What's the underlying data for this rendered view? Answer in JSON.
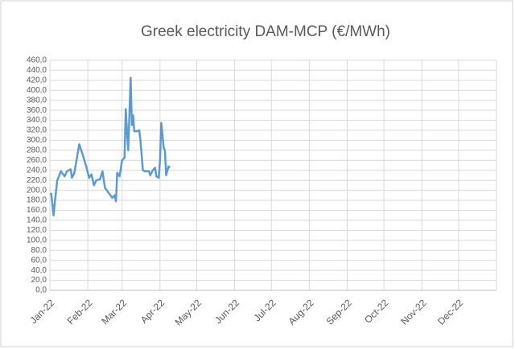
{
  "chart_data": {
    "type": "line",
    "title": "Greek electricity DAM-MCP (€/MWh)",
    "x": [
      1,
      3,
      4,
      6,
      9,
      12,
      14,
      17,
      18,
      20,
      24,
      27,
      30,
      32,
      34,
      36,
      38,
      41,
      43,
      45,
      48,
      51,
      53,
      54,
      55,
      57,
      59,
      61,
      62,
      63,
      64,
      66,
      67,
      68,
      69,
      71,
      73,
      74,
      76,
      78,
      81,
      82,
      84,
      86,
      87,
      89,
      90,
      91,
      93,
      94,
      95,
      97,
      98
    ],
    "series": [
      {
        "name": "DAM-MCP",
        "color": "#5b9bd5",
        "values": [
          195,
          150,
          175,
          220,
          238,
          228,
          238,
          242,
          225,
          235,
          292,
          270,
          245,
          225,
          232,
          210,
          220,
          222,
          238,
          205,
          195,
          185,
          190,
          178,
          235,
          228,
          260,
          265,
          362,
          320,
          280,
          425,
          330,
          350,
          318,
          318,
          320,
          300,
          240,
          238,
          238,
          230,
          240,
          245,
          228,
          225,
          260,
          335,
          285,
          280,
          230,
          248,
          245
        ]
      }
    ],
    "xlim": [
      0,
      365
    ],
    "xticks": [
      {
        "value": 0,
        "label": "Jan-22"
      },
      {
        "value": 31,
        "label": "Feb-22"
      },
      {
        "value": 59,
        "label": "Mar-22"
      },
      {
        "value": 90,
        "label": "Apr-22"
      },
      {
        "value": 120,
        "label": "May-22"
      },
      {
        "value": 151,
        "label": "Jun-22"
      },
      {
        "value": 181,
        "label": "Jul-22"
      },
      {
        "value": 212,
        "label": "Aug-22"
      },
      {
        "value": 243,
        "label": "Sep-22"
      },
      {
        "value": 273,
        "label": "Oct-22"
      },
      {
        "value": 304,
        "label": "Nov-22"
      },
      {
        "value": 334,
        "label": "Dec-22"
      }
    ],
    "ylim": [
      0,
      460
    ],
    "yticks": [
      {
        "value": 0,
        "label": "0,0"
      },
      {
        "value": 20,
        "label": "20,0"
      },
      {
        "value": 40,
        "label": "40,0"
      },
      {
        "value": 60,
        "label": "60,0"
      },
      {
        "value": 80,
        "label": "80,0"
      },
      {
        "value": 100,
        "label": "100,0"
      },
      {
        "value": 120,
        "label": "120,0"
      },
      {
        "value": 140,
        "label": "140,0"
      },
      {
        "value": 160,
        "label": "160,0"
      },
      {
        "value": 180,
        "label": "180,0"
      },
      {
        "value": 200,
        "label": "200,0"
      },
      {
        "value": 220,
        "label": "220,0"
      },
      {
        "value": 240,
        "label": "240,0"
      },
      {
        "value": 260,
        "label": "260,0"
      },
      {
        "value": 280,
        "label": "280,0"
      },
      {
        "value": 300,
        "label": "300,0"
      },
      {
        "value": 320,
        "label": "320,0"
      },
      {
        "value": 340,
        "label": "340,0"
      },
      {
        "value": 360,
        "label": "360,0"
      },
      {
        "value": 380,
        "label": "380,0"
      },
      {
        "value": 400,
        "label": "400,0"
      },
      {
        "value": 420,
        "label": "420,0"
      },
      {
        "value": 440,
        "label": "440,0"
      },
      {
        "value": 460,
        "label": "460,0"
      }
    ],
    "grid": true
  }
}
